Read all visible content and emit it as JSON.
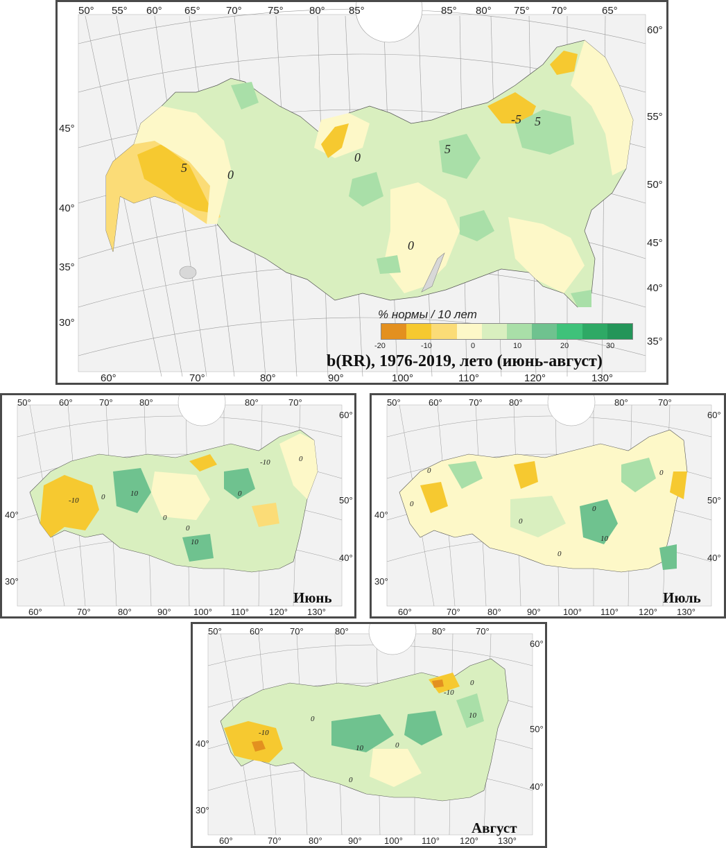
{
  "main": {
    "title": "b(RR), 1976-2019, лето (июнь-август)",
    "legend_title": "% нормы / 10 лет",
    "legend_colors": [
      "#e3901f",
      "#f6c930",
      "#fbdc77",
      "#fdf8c8",
      "#d9efbf",
      "#a9dfa8",
      "#6fc28f",
      "#3fc27a",
      "#2ea965",
      "#249559"
    ],
    "legend_ticks": [
      "-20",
      "-10",
      "0",
      "10",
      "20",
      "30"
    ],
    "top_lon": [
      "50°",
      "55°",
      "60°",
      "65°",
      "70°",
      "75°",
      "80°",
      "85°",
      "85°",
      "80°",
      "75°",
      "70°",
      "65°"
    ],
    "bottom_lon": [
      "60°",
      "70°",
      "80°",
      "90°",
      "100°",
      "110°",
      "120°",
      "130°"
    ],
    "left_lat": [
      "45°",
      "40°",
      "35°",
      "30°"
    ],
    "right_lat": [
      "60°",
      "55°",
      "50°",
      "45°",
      "40°",
      "35°"
    ],
    "isolines": [
      "5",
      "0",
      "0",
      "5",
      "-5",
      "5",
      "0"
    ]
  },
  "june": {
    "title": "Июнь",
    "top_lon": [
      "50°",
      "60°",
      "70°",
      "80°",
      "80°",
      "70°"
    ],
    "bottom_lon": [
      "60°",
      "70°",
      "80°",
      "90°",
      "100°",
      "110°",
      "120°",
      "130°"
    ],
    "left_lat": [
      "40°",
      "30°"
    ],
    "right_lat": [
      "60°",
      "50°",
      "40°"
    ],
    "isolines": [
      "-10",
      "0",
      "10",
      "0",
      "0",
      "-10",
      "0",
      "0",
      "10"
    ]
  },
  "july": {
    "title": "Июль",
    "top_lon": [
      "50°",
      "60°",
      "70°",
      "80°",
      "80°",
      "70°"
    ],
    "bottom_lon": [
      "60°",
      "70°",
      "80°",
      "90°",
      "100°",
      "110°",
      "120°",
      "130°"
    ],
    "left_lat": [
      "40°",
      "30°"
    ],
    "right_lat": [
      "60°",
      "50°",
      "40°"
    ],
    "isolines": [
      "0",
      "0",
      "0",
      "0",
      "0",
      "10",
      "0"
    ]
  },
  "august": {
    "title": "Август",
    "top_lon": [
      "50°",
      "60°",
      "70°",
      "80°",
      "80°",
      "70°"
    ],
    "bottom_lon": [
      "60°",
      "70°",
      "80°",
      "90°",
      "100°",
      "110°",
      "120°",
      "130°"
    ],
    "left_lat": [
      "40°",
      "30°"
    ],
    "right_lat": [
      "60°",
      "50°",
      "40°"
    ],
    "isolines": [
      "-10",
      "0",
      "10",
      "0",
      "0",
      "-10",
      "10",
      "0"
    ]
  }
}
